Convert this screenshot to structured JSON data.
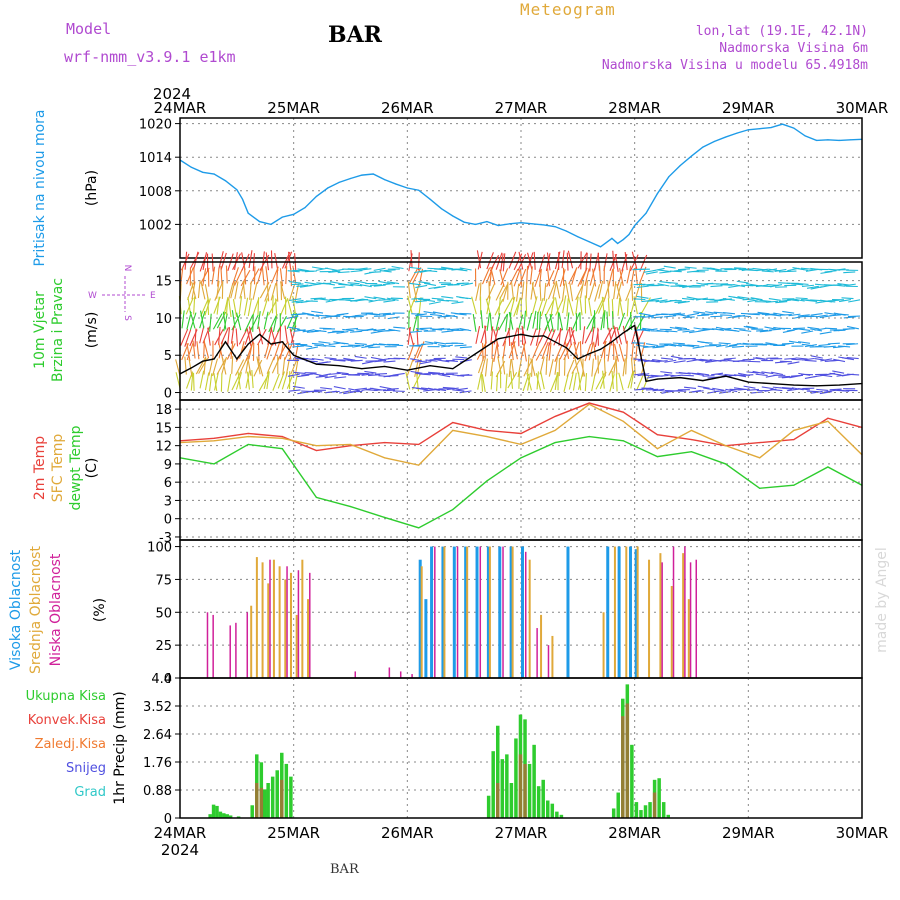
{
  "header": {
    "model_label": "Model",
    "model_name": "wrf-nmm_v3.9.1  e1km",
    "station": "BAR",
    "product": "Meteogram",
    "lonlat": "lon,lat (19.1E, 42.1N)",
    "elevation": "Nadmorska Visina 6m",
    "model_elevation": "Nadmorska Visina u modelu 65.4918m",
    "watermark": "made by Angel",
    "footer_station": "BAR"
  },
  "colors": {
    "pressure": "#1e9be8",
    "temp2m": "#e8403a",
    "sfctemp": "#e0a93a",
    "dewpt": "#2ecc2e",
    "high_cloud": "#1e9be8",
    "mid_cloud": "#e0a93a",
    "low_cloud": "#d0209a",
    "total_precip": "#2ecc2e",
    "conv_precip": "#e8403a",
    "frozen_precip": "#f07a30",
    "snow": "#5050e0",
    "hail": "#30c8c8",
    "header_purple": "#b04ad0"
  },
  "chart_data": [
    {
      "type": "line",
      "panel": "pressure",
      "title": "Pritisak na nivou mora",
      "ylabel": "(hPa)",
      "x_label_top": [
        "24MAR",
        "25MAR",
        "26MAR",
        "27MAR",
        "28MAR",
        "29MAR",
        "30MAR"
      ],
      "year_top": "2024",
      "ylim": [
        996,
        1021
      ],
      "yticks": [
        1002,
        1008,
        1014,
        1020
      ],
      "grid": true,
      "series": [
        {
          "x": [
            0,
            0.1,
            0.2,
            0.3,
            0.4,
            0.5,
            0.55,
            0.6,
            0.7,
            0.8,
            0.9,
            1.0,
            1.1,
            1.2,
            1.3,
            1.4,
            1.5,
            1.6,
            1.7,
            1.8,
            1.9,
            2.0,
            2.1,
            2.2,
            2.3,
            2.4,
            2.5,
            2.6,
            2.7,
            2.8,
            2.9,
            3.0,
            3.1,
            3.2,
            3.3,
            3.4,
            3.5,
            3.6,
            3.7,
            3.8,
            3.85,
            3.9,
            3.95,
            4.0,
            4.1,
            4.2,
            4.3,
            4.4,
            4.5,
            4.6,
            4.7,
            4.8,
            4.9,
            5.0,
            5.1,
            5.2,
            5.3,
            5.4,
            5.5,
            5.6,
            5.7,
            5.8,
            5.9,
            6.0
          ],
          "values": [
            1013.5,
            1012.2,
            1011.3,
            1011.0,
            1009.8,
            1008.2,
            1006.5,
            1004.0,
            1002.5,
            1002.0,
            1003.3,
            1003.8,
            1005.0,
            1007.0,
            1008.5,
            1009.5,
            1010.2,
            1010.8,
            1011.0,
            1010.0,
            1009.2,
            1008.5,
            1008.1,
            1006.5,
            1004.8,
            1003.5,
            1002.4,
            1002.0,
            1002.5,
            1001.8,
            1002.1,
            1002.3,
            1002.1,
            1001.9,
            1001.6,
            1000.8,
            999.8,
            998.9,
            998.0,
            999.5,
            998.6,
            999.3,
            1000.2,
            1001.8,
            1004.0,
            1007.5,
            1010.5,
            1012.5,
            1014.2,
            1015.8,
            1016.8,
            1017.6,
            1018.3,
            1018.9,
            1019.1,
            1019.3,
            1019.9,
            1019.2,
            1017.8,
            1017.0,
            1017.1,
            1017.0,
            1017.1,
            1017.2
          ]
        }
      ]
    },
    {
      "type": "line",
      "panel": "wind",
      "title": "10m Vjetar",
      "subtitle": "Brzina i Pravac",
      "ylabel": "(m/s)",
      "compass": {
        "n": "N",
        "w": "W",
        "e": "E",
        "s": "S"
      },
      "ylim": [
        -1,
        17.5
      ],
      "yticks": [
        0,
        5,
        10,
        15
      ],
      "grid": true,
      "series": [
        {
          "x": [
            0,
            0.1,
            0.2,
            0.3,
            0.4,
            0.5,
            0.6,
            0.7,
            0.8,
            0.9,
            1.0,
            1.2,
            1.4,
            1.6,
            1.8,
            2.0,
            2.2,
            2.4,
            2.6,
            2.8,
            3.0,
            3.1,
            3.2,
            3.3,
            3.4,
            3.5,
            3.6,
            3.7,
            3.8,
            3.9,
            4.0,
            4.1,
            4.2,
            4.4,
            4.6,
            4.8,
            5.0,
            5.2,
            5.4,
            5.6,
            5.8,
            6.0
          ],
          "values": [
            2.5,
            3.3,
            4.2,
            4.5,
            6.8,
            4.5,
            6.5,
            7.8,
            6.5,
            6.8,
            5.0,
            3.8,
            3.6,
            3.2,
            3.5,
            3.0,
            3.6,
            3.2,
            5.2,
            7.2,
            7.8,
            7.5,
            7.6,
            6.8,
            6.0,
            4.5,
            5.2,
            5.8,
            6.8,
            8.0,
            9.0,
            1.5,
            1.8,
            2.0,
            1.6,
            2.2,
            1.4,
            1.2,
            1.0,
            0.9,
            1.0,
            1.2
          ]
        }
      ]
    },
    {
      "type": "line",
      "panel": "temperature",
      "title_lines": [
        "2m Temp",
        "SFC Temp",
        "dewpt Temp"
      ],
      "ylabel": "(C)",
      "ylim": [
        -3.5,
        19.5
      ],
      "yticks": [
        -3,
        0,
        3,
        6,
        9,
        12,
        15,
        18
      ],
      "grid": true,
      "series": [
        {
          "name": "2m Temp",
          "x": [
            0,
            0.3,
            0.6,
            0.9,
            1.2,
            1.5,
            1.8,
            2.1,
            2.4,
            2.7,
            3.0,
            3.3,
            3.6,
            3.9,
            4.2,
            4.5,
            4.8,
            5.1,
            5.4,
            5.7,
            6.0
          ],
          "values": [
            12.8,
            13.2,
            14.0,
            13.5,
            11.2,
            12.0,
            12.5,
            12.2,
            15.8,
            14.5,
            14.0,
            16.8,
            19.0,
            17.5,
            13.8,
            13.0,
            12.0,
            12.5,
            13.0,
            16.5,
            15.0
          ]
        },
        {
          "name": "SFC Temp",
          "x": [
            0,
            0.3,
            0.6,
            0.9,
            1.2,
            1.5,
            1.8,
            2.1,
            2.4,
            2.7,
            3.0,
            3.3,
            3.6,
            3.9,
            4.2,
            4.5,
            4.8,
            5.1,
            5.4,
            5.7,
            6.0
          ],
          "values": [
            12.5,
            12.8,
            13.5,
            13.2,
            12.0,
            12.2,
            10.0,
            8.8,
            14.5,
            13.5,
            12.2,
            14.5,
            18.8,
            16.0,
            11.5,
            14.5,
            12.0,
            10.0,
            14.5,
            16.0,
            10.5
          ]
        },
        {
          "name": "dewpt Temp",
          "x": [
            0,
            0.3,
            0.6,
            0.9,
            1.2,
            1.5,
            1.8,
            2.1,
            2.4,
            2.7,
            3.0,
            3.3,
            3.6,
            3.9,
            4.2,
            4.5,
            4.8,
            5.1,
            5.4,
            5.7,
            6.0
          ],
          "values": [
            10.0,
            9.0,
            12.2,
            11.5,
            3.5,
            2.0,
            0.2,
            -1.5,
            1.5,
            6.2,
            10.0,
            12.5,
            13.5,
            12.8,
            10.2,
            11.0,
            9.0,
            5.0,
            5.5,
            8.5,
            5.5
          ]
        }
      ]
    },
    {
      "type": "bar",
      "panel": "clouds",
      "title_lines": [
        "Visoka Oblacnost",
        "Srednja Oblacnost",
        "Niska Oblacnost"
      ],
      "ylabel": "(%)",
      "ylim": [
        0,
        105
      ],
      "yticks": [
        0,
        25,
        50,
        75,
        100
      ],
      "grid": true,
      "series": [
        {
          "name": "Visoka Oblacnost",
          "x": [
            2.1,
            2.15,
            2.2,
            2.3,
            2.4,
            2.5,
            2.6,
            2.7,
            2.8,
            2.9,
            3.0,
            3.4,
            3.75,
            3.85,
            3.95,
            4.0
          ],
          "values": [
            90,
            60,
            100,
            100,
            100,
            100,
            100,
            100,
            100,
            100,
            100,
            100,
            100,
            100,
            100,
            98
          ]
        },
        {
          "name": "Srednja Oblacnost",
          "x": [
            0.6,
            0.65,
            0.7,
            0.75,
            0.8,
            0.85,
            0.9,
            0.95,
            1.0,
            1.05,
            1.1,
            2.1,
            2.3,
            2.5,
            2.7,
            2.9,
            3.05,
            3.15,
            3.25,
            3.7,
            3.8,
            3.9,
            4.0,
            4.1,
            4.2,
            4.3,
            4.4,
            4.45
          ],
          "values": [
            55,
            92,
            88,
            72,
            90,
            85,
            75,
            80,
            48,
            90,
            60,
            85,
            100,
            100,
            100,
            100,
            90,
            48,
            32,
            50,
            100,
            100,
            100,
            90,
            95,
            70,
            95,
            60
          ]
        },
        {
          "name": "Niska Oblacnost",
          "x": [
            0.2,
            0.25,
            0.4,
            0.45,
            0.55,
            0.75,
            0.9,
            1.0,
            1.1,
            1.5,
            1.8,
            1.9,
            2.0,
            2.2,
            2.4,
            2.6,
            2.8,
            3.0,
            3.1,
            3.2,
            4.2,
            4.3,
            4.4,
            4.45,
            4.5
          ],
          "values": [
            50,
            48,
            40,
            42,
            50,
            90,
            85,
            82,
            80,
            5,
            8,
            5,
            3,
            100,
            100,
            100,
            100,
            96,
            38,
            25,
            88,
            100,
            100,
            88,
            90
          ]
        }
      ]
    },
    {
      "type": "bar",
      "panel": "precip",
      "title_lines": [
        "Ukupna Kisa",
        "Konvek.Kisa",
        "Zaledj.Kisa",
        "Snijeg",
        "Grad"
      ],
      "ylabel": "1hr Precip (mm)",
      "x_label_bottom": [
        "24MAR",
        "25MAR",
        "26MAR",
        "27MAR",
        "28MAR",
        "29MAR",
        "30MAR"
      ],
      "year_bottom": "2024",
      "ylim": [
        0,
        4.4
      ],
      "yticks": [
        0,
        0.88,
        1.76,
        2.64,
        3.52,
        4.4
      ],
      "grid": true,
      "series": [
        {
          "name": "Ukupna Kisa",
          "x": [
            0.25,
            0.28,
            0.31,
            0.34,
            0.37,
            0.4,
            0.43,
            0.5,
            0.62,
            0.66,
            0.7,
            0.73,
            0.76,
            0.8,
            0.84,
            0.88,
            0.92,
            0.96,
            2.7,
            2.74,
            2.78,
            2.82,
            2.86,
            2.9,
            2.94,
            2.98,
            3.02,
            3.06,
            3.1,
            3.14,
            3.18,
            3.22,
            3.26,
            3.3,
            3.34,
            3.8,
            3.84,
            3.88,
            3.92,
            3.96,
            4.0,
            4.04,
            4.08,
            4.12,
            4.16,
            4.2,
            4.24,
            4.28
          ],
          "values": [
            0.12,
            0.42,
            0.38,
            0.2,
            0.15,
            0.12,
            0.08,
            0.05,
            0.4,
            2.0,
            1.75,
            0.9,
            1.1,
            1.3,
            1.5,
            2.05,
            1.7,
            1.3,
            0.7,
            2.1,
            2.9,
            1.85,
            2.0,
            1.1,
            2.5,
            3.25,
            3.1,
            1.7,
            2.3,
            1.0,
            1.2,
            0.55,
            0.45,
            0.2,
            0.1,
            0.3,
            0.8,
            3.75,
            4.2,
            2.3,
            0.5,
            0.25,
            0.4,
            0.5,
            1.2,
            1.25,
            0.5,
            0.1
          ]
        },
        {
          "name": "Konvek.Kisa",
          "x": [
            0.66,
            0.7,
            0.88,
            2.78,
            2.98,
            3.02,
            3.88,
            3.92,
            4.16
          ],
          "values": [
            1.1,
            0.95,
            1.2,
            1.1,
            2.0,
            1.7,
            3.2,
            3.6,
            0.8
          ]
        }
      ]
    }
  ]
}
